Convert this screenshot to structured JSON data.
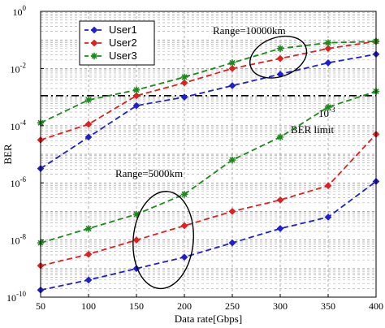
{
  "chart_data": {
    "type": "line",
    "xlabel": "Data rate[Gbps]",
    "ylabel": "BER",
    "x": [
      50,
      100,
      150,
      200,
      250,
      300,
      350,
      400
    ],
    "xlim": [
      50,
      400
    ],
    "ylim_log10": [
      -10,
      0
    ],
    "y_scale": "log",
    "grid": "dashed",
    "legend_position": "top-left",
    "x_tick_labels": [
      "50",
      "100",
      "150",
      "200",
      "250",
      "300",
      "350",
      "400"
    ],
    "y_tick_exponents": [
      -10,
      -8,
      -6,
      -4,
      -2,
      0
    ],
    "y_tick_base": "10",
    "series": [
      {
        "name": "User1",
        "group": "Range=10000km",
        "color": "#1f1fcf",
        "marker": "diamond",
        "values_log10": [
          -5.5,
          -4.4,
          -3.3,
          -3.0,
          -2.6,
          -2.2,
          -1.8,
          -1.5
        ]
      },
      {
        "name": "User2",
        "group": "Range=10000km",
        "color": "#e02020",
        "marker": "diamond",
        "values_log10": [
          -4.5,
          -3.95,
          -2.95,
          -2.5,
          -2.0,
          -1.65,
          -1.3,
          -1.05
        ]
      },
      {
        "name": "User3",
        "group": "Range=10000km",
        "color": "#1a8a1a",
        "marker": "star",
        "values_log10": [
          -3.9,
          -3.1,
          -2.75,
          -2.3,
          -1.8,
          -1.3,
          -1.1,
          -1.05
        ]
      },
      {
        "name": "User1",
        "group": "Range=5000km",
        "color": "#1f1fcf",
        "marker": "diamond",
        "values_log10": [
          -9.75,
          -9.4,
          -9.0,
          -8.6,
          -8.1,
          -7.6,
          -7.2,
          -5.95
        ]
      },
      {
        "name": "User2",
        "group": "Range=5000km",
        "color": "#e02020",
        "marker": "diamond",
        "values_log10": [
          -8.9,
          -8.5,
          -8.0,
          -7.5,
          -7.0,
          -6.6,
          -6.1,
          -4.3
        ]
      },
      {
        "name": "User3",
        "group": "Range=5000km",
        "color": "#1a8a1a",
        "marker": "star",
        "values_log10": [
          -8.1,
          -7.6,
          -7.1,
          -6.4,
          -5.2,
          -4.4,
          -3.35,
          -2.8
        ]
      }
    ],
    "ber_limit": {
      "value_log10": -2.95,
      "label_base": "10",
      "label_exp": "-3",
      "label_text": "BER limit"
    },
    "annotations": [
      {
        "text": "Range=10000km",
        "ellipse_center_x": 298,
        "ellipse_center_log10": -1.6
      },
      {
        "text": "Range=5000km",
        "ellipse_center_x": 178,
        "ellipse_center_log10": -8.0
      }
    ]
  }
}
